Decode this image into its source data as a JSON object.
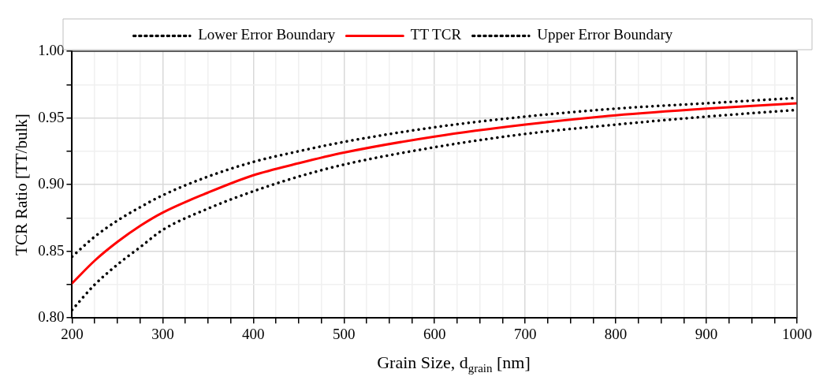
{
  "chart_data": {
    "type": "line",
    "xlabel": "Grain Size, d$_{grain}$ [nm]",
    "ylabel": "TCR Ratio [TT/bulk]",
    "x": [
      200,
      225,
      250,
      275,
      300,
      350,
      400,
      450,
      500,
      600,
      700,
      800,
      900,
      1000
    ],
    "series": [
      {
        "name": "Lower Error Boundary",
        "color": "#000000",
        "line_style": "dotted",
        "values": [
          0.806,
          0.825,
          0.84,
          0.853,
          0.866,
          0.882,
          0.895,
          0.906,
          0.915,
          0.928,
          0.938,
          0.945,
          0.951,
          0.956
        ]
      },
      {
        "name": "TT TCR",
        "color": "#ff0000",
        "line_style": "solid",
        "values": [
          0.826,
          0.843,
          0.857,
          0.869,
          0.879,
          0.894,
          0.907,
          0.916,
          0.924,
          0.936,
          0.945,
          0.952,
          0.957,
          0.961
        ]
      },
      {
        "name": "Upper Error Boundary",
        "color": "#000000",
        "line_style": "dotted",
        "values": [
          0.846,
          0.861,
          0.873,
          0.883,
          0.892,
          0.906,
          0.917,
          0.925,
          0.932,
          0.943,
          0.951,
          0.957,
          0.961,
          0.965
        ]
      }
    ],
    "xlim": [
      200,
      1000
    ],
    "xticks": [
      200,
      {
        "value": 225,
        "label": null
      },
      {
        "value": 250,
        "label": null
      },
      {
        "value": 275,
        "label": null
      },
      300,
      {
        "value": 325,
        "label": null
      },
      {
        "value": 350,
        "label": null
      },
      {
        "value": 375,
        "label": null
      },
      400,
      {
        "value": 425,
        "label": null
      },
      {
        "value": 450,
        "label": null
      },
      {
        "value": 475,
        "label": null
      },
      500,
      {
        "value": 525,
        "label": null
      },
      {
        "value": 550,
        "label": null
      },
      {
        "value": 575,
        "label": null
      },
      600,
      {
        "value": 625,
        "label": null
      },
      {
        "value": 650,
        "label": null
      },
      {
        "value": 675,
        "label": null
      },
      700,
      {
        "value": 725,
        "label": null
      },
      {
        "value": 750,
        "label": null
      },
      {
        "value": 775,
        "label": null
      },
      800,
      {
        "value": 825,
        "label": null
      },
      {
        "value": 850,
        "label": null
      },
      {
        "value": 875,
        "label": null
      },
      900,
      {
        "value": 925,
        "label": null
      },
      {
        "value": 950,
        "label": null
      },
      {
        "value": 975,
        "label": null
      },
      1000
    ],
    "ylim": [
      0.8,
      1.0
    ],
    "yticks": [
      {
        "value": 0.8,
        "label": "0.80"
      },
      {
        "value": 0.825,
        "label": null
      },
      {
        "value": 0.85,
        "label": "0.85"
      },
      {
        "value": 0.875,
        "label": null
      },
      {
        "value": 0.9,
        "label": "0.90"
      },
      {
        "value": 0.925,
        "label": null
      },
      {
        "value": 0.95,
        "label": "0.95"
      },
      {
        "value": 0.975,
        "label": null
      },
      {
        "value": 1.0,
        "label": "1.00"
      }
    ],
    "grid": true,
    "legend": "top",
    "marker": "none"
  }
}
